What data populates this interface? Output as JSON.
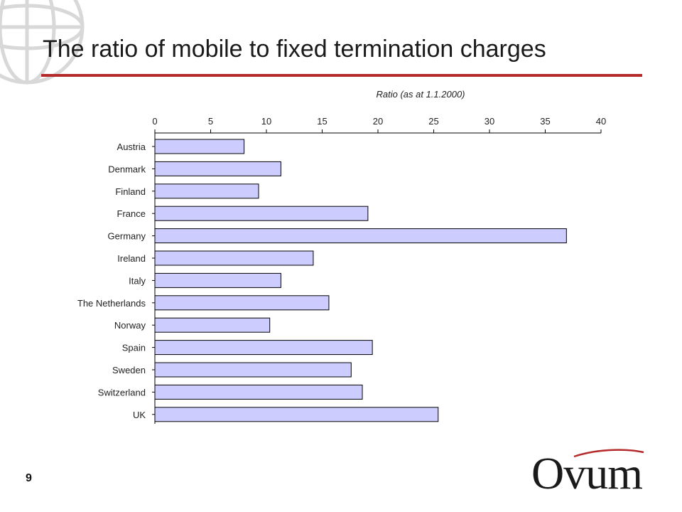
{
  "slide": {
    "title": "The ratio of mobile to fixed termination charges",
    "page_number": "9",
    "logo_text": "Ovum",
    "accent_color": "#b52a2a"
  },
  "chart_data": {
    "type": "bar",
    "orientation": "horizontal",
    "title": "Ratio (as at 1.1.2000)",
    "xlabel": "",
    "ylabel": "",
    "xlim": [
      0,
      40
    ],
    "x_ticks": [
      0,
      5,
      10,
      15,
      20,
      25,
      30,
      35,
      40
    ],
    "x_axis_position": "top",
    "grid": false,
    "legend": "none",
    "bar_color": "#ccccff",
    "bar_edge_color": "#000000",
    "categories": [
      "Austria",
      "Denmark",
      "Finland",
      "France",
      "Germany",
      "Ireland",
      "Italy",
      "The Netherlands",
      "Norway",
      "Spain",
      "Sweden",
      "Switzerland",
      "UK"
    ],
    "values": [
      8.0,
      11.3,
      9.3,
      19.1,
      36.9,
      14.2,
      11.3,
      15.6,
      10.3,
      19.5,
      17.6,
      18.6,
      25.4
    ]
  }
}
